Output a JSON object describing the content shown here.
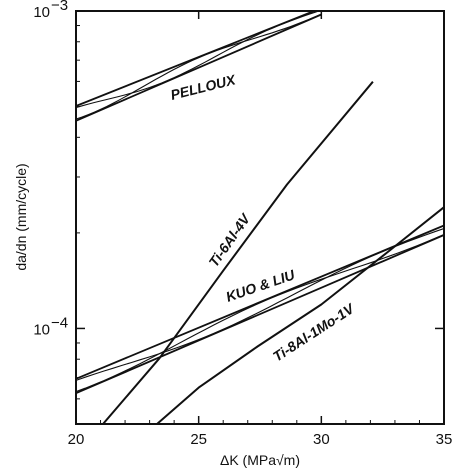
{
  "chart_data": {
    "type": "line",
    "title": "",
    "xlabel": "ΔK (MPa√m)",
    "ylabel": "da/dn (mm/cycle)",
    "xlim": [
      20,
      35
    ],
    "ylim": [
      5e-05,
      0.001
    ],
    "yscale": "log",
    "grid": false,
    "x_ticks": [
      {
        "value": 20,
        "label": "20"
      },
      {
        "value": 25,
        "label": "25"
      },
      {
        "value": 30,
        "label": "30"
      },
      {
        "value": 35,
        "label": "35"
      }
    ],
    "y_ticks": [
      {
        "value": 0.001,
        "label": "10",
        "exp": "−3"
      },
      {
        "value": 0.0001,
        "label": "10",
        "exp": "−4"
      }
    ],
    "series": [
      {
        "name": "PELLOUX",
        "kind": "band",
        "strands": 4,
        "lower": [
          [
            20,
            0.000451
          ],
          [
            30,
            0.000975
          ]
        ],
        "upper": [
          [
            20,
            0.000502
          ],
          [
            29.7,
            0.001
          ]
        ]
      },
      {
        "name": "Ti-6Al-4V",
        "kind": "line",
        "points": [
          [
            21.1,
            5e-05
          ],
          [
            23.4,
            8.05e-05
          ],
          [
            26,
            0.000152
          ],
          [
            28.6,
            0.000284
          ],
          [
            32.1,
            0.000599
          ]
        ]
      },
      {
        "name": "KUO & LIU",
        "kind": "band",
        "strands": 4,
        "lower": [
          [
            20,
            6.25e-05
          ],
          [
            35,
            0.000197
          ]
        ],
        "upper": [
          [
            20,
            6.94e-05
          ],
          [
            35,
            0.000211
          ]
        ]
      },
      {
        "name": "Ti-8Al-1Mo-1V",
        "kind": "line",
        "points": [
          [
            23.3,
            5e-05
          ],
          [
            25,
            6.51e-05
          ],
          [
            27.4,
            8.77e-05
          ],
          [
            30,
            0.000119
          ],
          [
            32.7,
            0.000174
          ],
          [
            35,
            0.000241
          ]
        ]
      }
    ]
  }
}
